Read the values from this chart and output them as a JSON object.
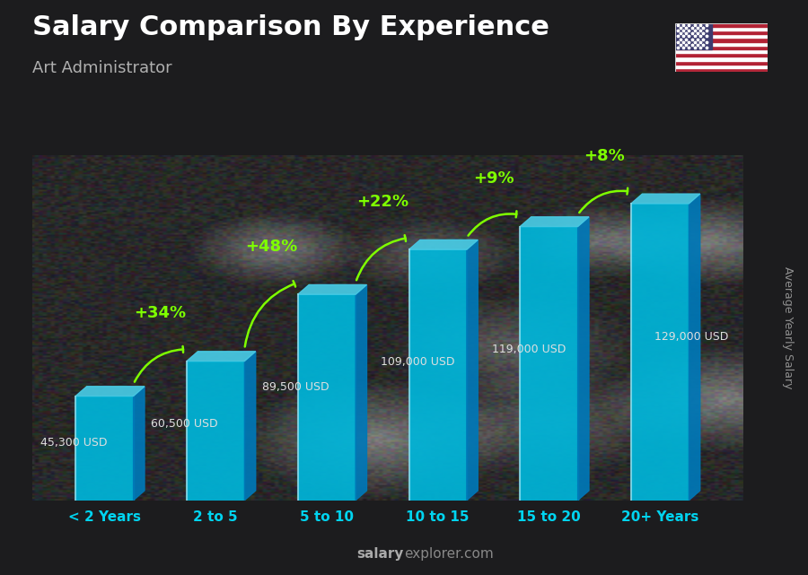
{
  "title": "Salary Comparison By Experience",
  "subtitle": "Art Administrator",
  "categories": [
    "< 2 Years",
    "2 to 5",
    "5 to 10",
    "10 to 15",
    "15 to 20",
    "20+ Years"
  ],
  "values": [
    45300,
    60500,
    89500,
    109000,
    119000,
    129000
  ],
  "salary_labels": [
    "45,300 USD",
    "60,500 USD",
    "89,500 USD",
    "109,000 USD",
    "119,000 USD",
    "129,000 USD"
  ],
  "pct_changes": [
    "+34%",
    "+48%",
    "+22%",
    "+9%",
    "+8%"
  ],
  "bar_front_color": "#00b4d8",
  "bar_top_color": "#48cae4",
  "bar_side_color": "#0077b6",
  "bar_highlight": "#90e0ef",
  "pct_color": "#7fff00",
  "xlabel_color": "#00d4f0",
  "ylabel_text": "Average Yearly Salary",
  "watermark_left": "salary",
  "watermark_right": "explorer.com",
  "ylim": [
    0,
    150000
  ],
  "title_fontsize": 22,
  "subtitle_fontsize": 13,
  "label_fontsize": 9,
  "pct_fontsize": 13,
  "xtick_fontsize": 11
}
